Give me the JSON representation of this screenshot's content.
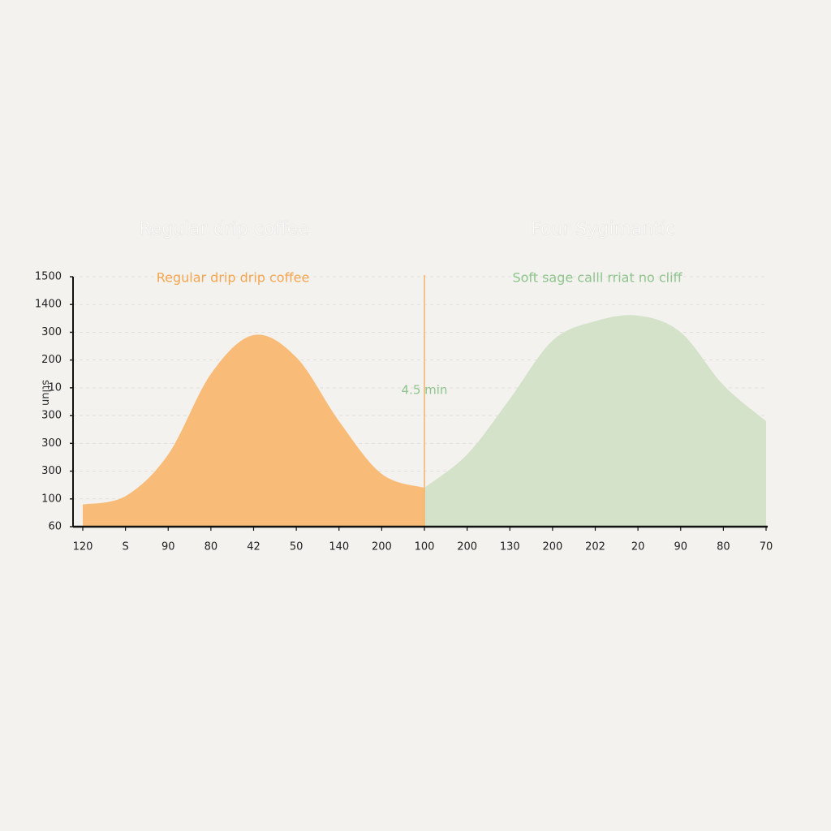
{
  "chart_data": {
    "type": "area",
    "panel_titles": [
      "Regular drip coffee",
      "Four Sygimantic"
    ],
    "y_label": "stlun",
    "annotation": "4.5 min",
    "categories": [
      "120",
      "S",
      "90",
      "80",
      "42",
      "50",
      "140",
      "200",
      "100",
      "200",
      "130",
      "200",
      "202",
      "20",
      "90",
      "80",
      "70"
    ],
    "series": [
      {
        "name": "Regular drip drip coffee",
        "color": "#f9bc78",
        "text_color": "#f3a650",
        "values": [
          0.8,
          1.1,
          2.6,
          5.5,
          6.9,
          6.1,
          3.8,
          1.9,
          1.4,
          null,
          null,
          null,
          null,
          null,
          null,
          null,
          null
        ]
      },
      {
        "name": "Soft sage calll rriat no cliff",
        "color": "#d3e2c8",
        "text_color": "#8ec58c",
        "values": [
          null,
          null,
          null,
          null,
          null,
          null,
          null,
          null,
          1.4,
          2.6,
          4.6,
          6.7,
          7.4,
          7.6,
          7.0,
          5.1,
          3.8
        ]
      }
    ],
    "ylim": [
      0,
      9
    ],
    "yticks": [
      {
        "value": 0,
        "label": "60"
      },
      {
        "value": 1,
        "label": "100"
      },
      {
        "value": 2,
        "label": "300"
      },
      {
        "value": 3,
        "label": "300"
      },
      {
        "value": 4,
        "label": "300"
      },
      {
        "value": 5,
        "label": "10"
      },
      {
        "value": 6,
        "label": "200"
      },
      {
        "value": 7,
        "label": "300"
      },
      {
        "value": 8,
        "label": "1400"
      },
      {
        "value": 9,
        "label": "1500"
      }
    ],
    "grid": true,
    "annotation_color": "#f5b36c"
  }
}
